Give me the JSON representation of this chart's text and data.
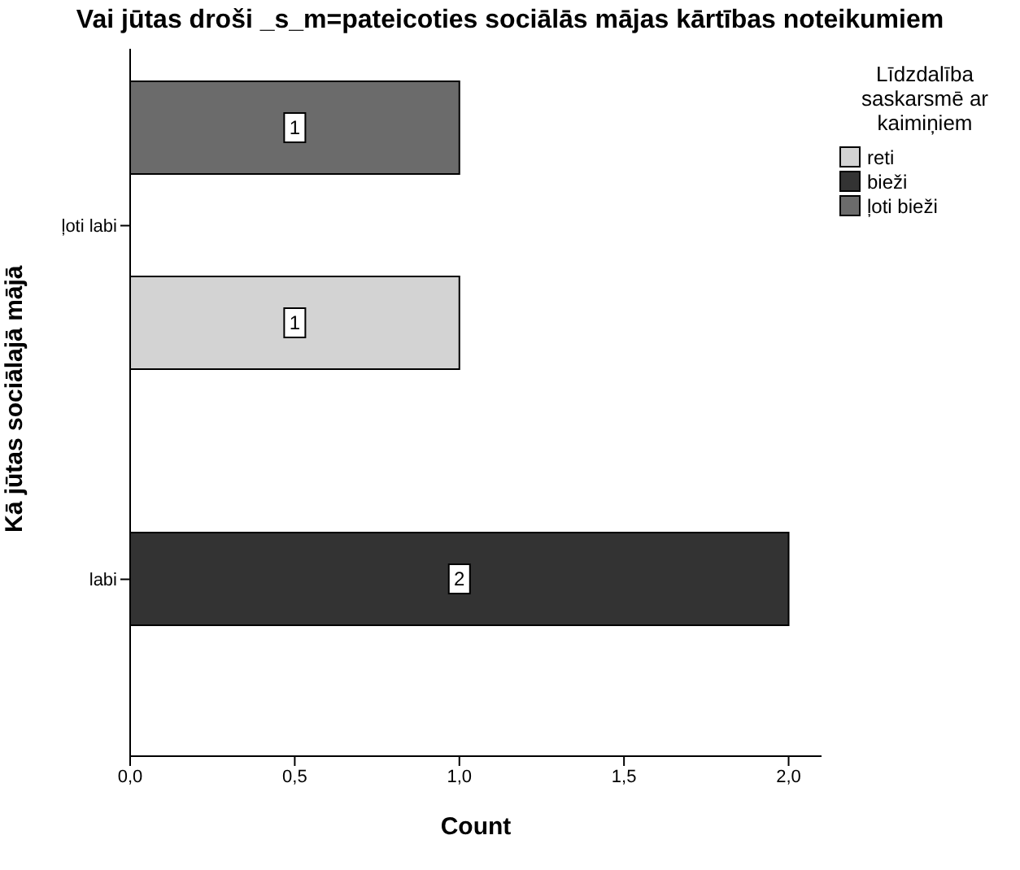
{
  "chart_data": {
    "type": "bar",
    "orientation": "horizontal",
    "title": "Vai jūtas droši _s_m=pateicoties sociālās mājas  kārtības noteikumiem",
    "xlabel": "Count",
    "ylabel": "Kā jūtas sociālajā mājā",
    "legend_title": "Līdzdalība saskarsmē ar kaimiņiem",
    "legend": "top right",
    "categories": [
      "ļoti labi",
      "labi"
    ],
    "series": [
      {
        "name": "reti",
        "color": "#d3d3d3",
        "values": [
          1,
          null
        ]
      },
      {
        "name": "bieži",
        "color": "#333333",
        "values": [
          null,
          2
        ]
      },
      {
        "name": "ļoti bieži",
        "color": "#6b6b6b",
        "values": [
          1,
          null
        ]
      }
    ],
    "xlim": [
      0,
      2.1
    ],
    "xticks": [
      {
        "value": 0,
        "label": "0,0"
      },
      {
        "value": 0.5,
        "label": "0,5"
      },
      {
        "value": 1,
        "label": "1,0"
      },
      {
        "value": 1.5,
        "label": "1,5"
      },
      {
        "value": 2,
        "label": "2,0"
      }
    ],
    "data_labels": true
  }
}
